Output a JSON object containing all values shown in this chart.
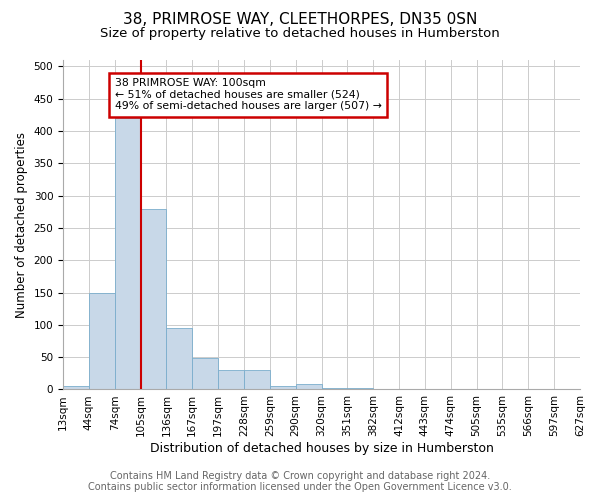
{
  "title1": "38, PRIMROSE WAY, CLEETHORPES, DN35 0SN",
  "title2": "Size of property relative to detached houses in Humberston",
  "xlabel": "Distribution of detached houses by size in Humberston",
  "ylabel": "Number of detached properties",
  "bin_labels": [
    "13sqm",
    "44sqm",
    "74sqm",
    "105sqm",
    "136sqm",
    "167sqm",
    "197sqm",
    "228sqm",
    "259sqm",
    "290sqm",
    "320sqm",
    "351sqm",
    "382sqm",
    "412sqm",
    "443sqm",
    "474sqm",
    "505sqm",
    "535sqm",
    "566sqm",
    "597sqm",
    "627sqm"
  ],
  "bar_values": [
    5,
    150,
    420,
    280,
    95,
    48,
    30,
    30,
    6,
    9,
    2,
    2,
    0,
    0,
    0,
    0,
    0,
    0,
    0,
    0
  ],
  "bar_color": "#c8d8e8",
  "bar_edge_color": "#7aadcc",
  "red_line_bin_index": 3,
  "annotation_title": "38 PRIMROSE WAY: 100sqm",
  "annotation_line1": "← 51% of detached houses are smaller (524)",
  "annotation_line2": "49% of semi-detached houses are larger (507) →",
  "annotation_box_color": "#ffffff",
  "annotation_box_edge": "#cc0000",
  "red_line_color": "#cc0000",
  "ylim": [
    0,
    510
  ],
  "yticks": [
    0,
    50,
    100,
    150,
    200,
    250,
    300,
    350,
    400,
    450,
    500
  ],
  "footer1": "Contains HM Land Registry data © Crown copyright and database right 2024.",
  "footer2": "Contains public sector information licensed under the Open Government Licence v3.0.",
  "bg_color": "#ffffff",
  "plot_bg_color": "#ffffff",
  "title1_fontsize": 11,
  "title2_fontsize": 9.5,
  "xlabel_fontsize": 9,
  "ylabel_fontsize": 8.5,
  "tick_fontsize": 7.5,
  "footer_fontsize": 7,
  "n_bins": 20
}
